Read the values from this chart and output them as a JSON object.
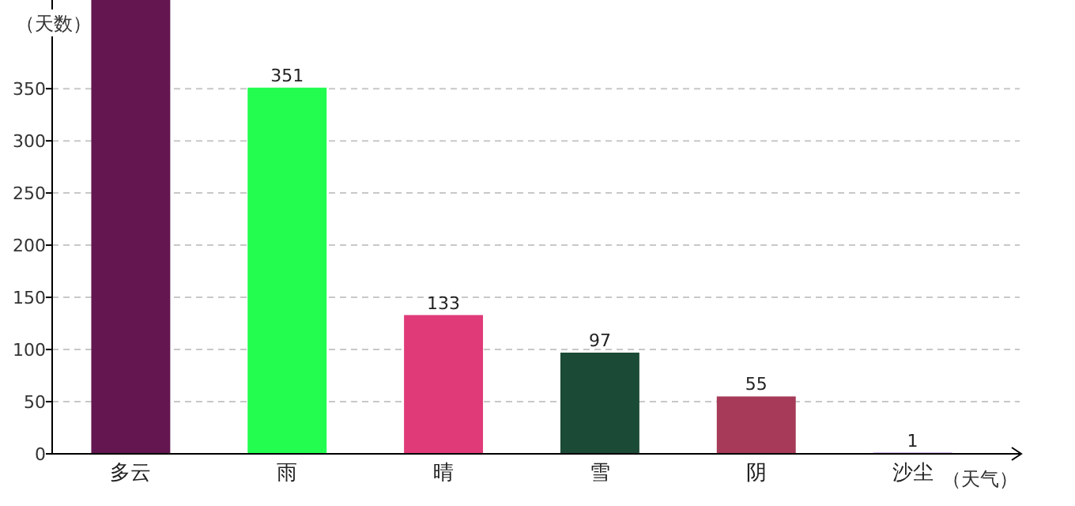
{
  "chart_data": {
    "type": "bar",
    "xlabel": "（天气）",
    "ylabel": "（天数）",
    "categories": [
      "多云",
      "雨",
      "晴",
      "雪",
      "阴",
      "沙尘"
    ],
    "values": [
      435,
      351,
      133,
      97,
      55,
      1
    ],
    "colors": [
      "#63164f",
      "#22fd50",
      "#e03a78",
      "#1b4a36",
      "#a63a58",
      "#7a1fb0"
    ],
    "value_labels": [
      null,
      "351",
      "133",
      "97",
      "55",
      "1"
    ],
    "ylim": [
      0,
      435
    ],
    "yticks": [
      0,
      50,
      100,
      150,
      200,
      250,
      300,
      350
    ],
    "grid": "y"
  }
}
